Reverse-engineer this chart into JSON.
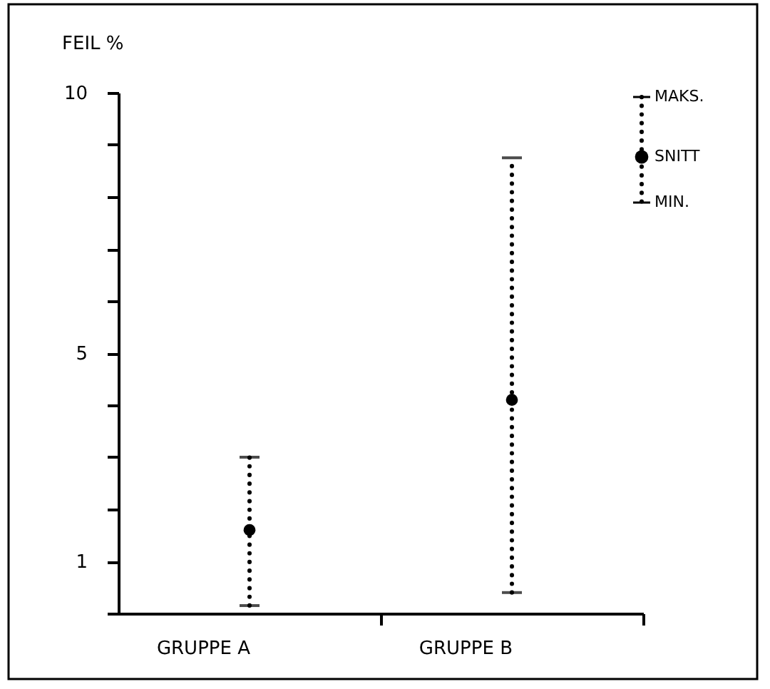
{
  "chart_data": {
    "type": "scatter",
    "ylabel": "FEIL %",
    "categories": [
      "GRUPPE A",
      "GRUPPE B"
    ],
    "values": [
      1.6,
      4.1
    ],
    "errors": [
      [
        0.15,
        3.0
      ],
      [
        0.4,
        8.75
      ]
    ],
    "color": "#000000",
    "ylim": [
      0,
      10
    ],
    "yticks": [
      {
        "value": 0,
        "label": null
      },
      1,
      {
        "value": 2,
        "label": null
      },
      {
        "value": 3,
        "label": null
      },
      {
        "value": 4,
        "label": null
      },
      5,
      {
        "value": 6,
        "label": null
      },
      {
        "value": 7,
        "label": null
      },
      {
        "value": 8,
        "label": null
      },
      {
        "value": 9,
        "label": null
      },
      10
    ],
    "annotations": [
      "MAKS.",
      "SNITT",
      "MIN."
    ],
    "marker": "circle",
    "line_style": "dotted",
    "grid": false
  }
}
